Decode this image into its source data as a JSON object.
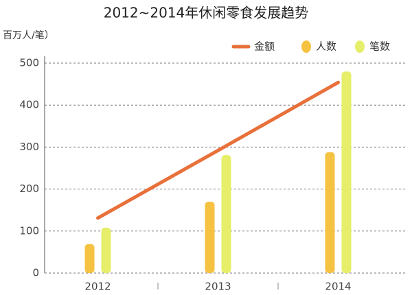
{
  "chart_data": {
    "type": "bar",
    "title": "2012~2014年休闲零食发展趋势",
    "y_label": "百万人/笔）",
    "categories": [
      "2012",
      "2013",
      "2014"
    ],
    "series": [
      {
        "name": "金额",
        "type": "line",
        "color": "#e8703a",
        "values": [
          131,
          292,
          454
        ]
      },
      {
        "name": "人数",
        "type": "bar",
        "color": "#f5c242",
        "values": [
          69,
          170,
          288
        ]
      },
      {
        "name": "笔数",
        "type": "bar",
        "color": "#e6ee6a",
        "values": [
          108,
          281,
          480
        ]
      }
    ],
    "ylim": [
      0,
      500
    ],
    "yticks": [
      0,
      100,
      200,
      300,
      400,
      500
    ],
    "grid": true
  }
}
